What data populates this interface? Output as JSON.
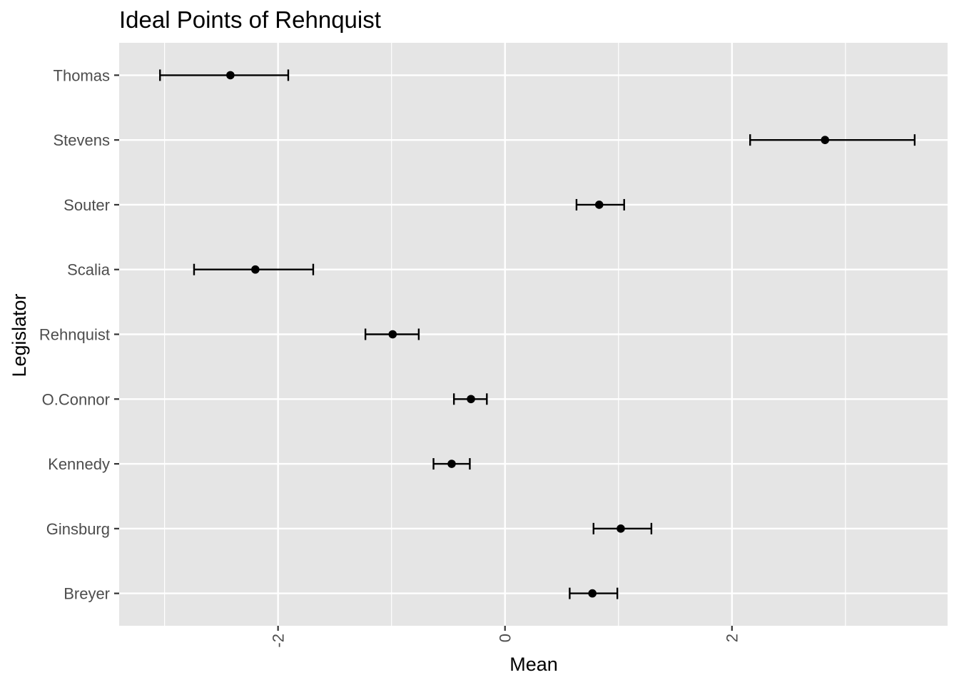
{
  "chart_data": {
    "type": "errorbar",
    "title": "Ideal Points of Rehnquist",
    "xlabel": "Mean",
    "ylabel": "Legislator",
    "xlim": [
      -3.4,
      3.9
    ],
    "x_ticks": [
      -2,
      0,
      2
    ],
    "x_tick_labels": [
      "-2",
      "0",
      "2"
    ],
    "x_tick_rotation": -90,
    "grid": true,
    "panel_background": "#e5e5e5",
    "grid_color": "#ffffff",
    "point_color": "#000000",
    "categories": [
      "Breyer",
      "Ginsburg",
      "Kennedy",
      "O.Connor",
      "Rehnquist",
      "Scalia",
      "Souter",
      "Stevens",
      "Thomas"
    ],
    "series": [
      {
        "mean": [
          0.77,
          1.02,
          -0.47,
          -0.3,
          -0.99,
          -2.2,
          0.83,
          2.82,
          -2.42
        ],
        "lower": [
          0.57,
          0.78,
          -0.63,
          -0.45,
          -1.23,
          -2.74,
          0.63,
          2.16,
          -3.04
        ],
        "upper": [
          0.99,
          1.29,
          -0.31,
          -0.16,
          -0.76,
          -1.69,
          1.05,
          3.61,
          -1.91
        ]
      }
    ]
  }
}
